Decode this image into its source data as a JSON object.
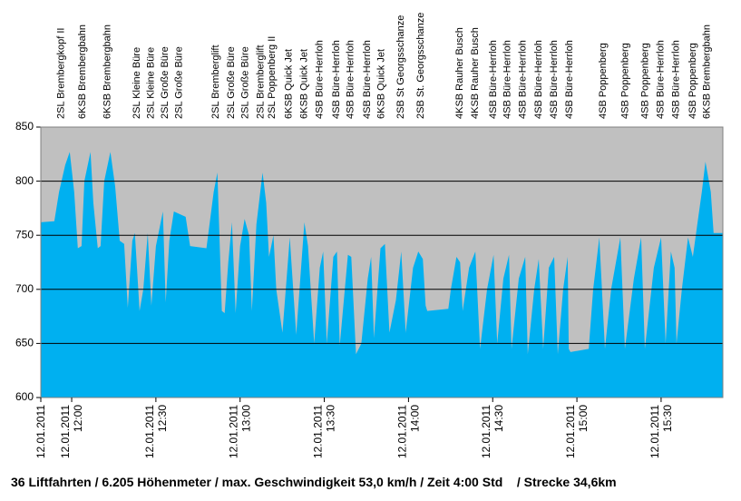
{
  "chart_data": {
    "type": "area",
    "title": "36 Liftfahrten / 6.205 Höhenmeter / max. Geschwindigkeit 53,0 km/h / Zeit 4:00 Std    / Strecke 34,6km",
    "color": "#00b0f0",
    "background": "#c0c0c0",
    "grid": true,
    "xlim": [
      709,
      952
    ],
    "ylim": [
      600,
      850
    ],
    "yticks": [
      600,
      650,
      700,
      750,
      800,
      850
    ],
    "xticks": [
      {
        "value": 709,
        "label": "12.01.2011"
      },
      {
        "value": 720,
        "label": "12.01.2011 12:00"
      },
      {
        "value": 750,
        "label": "12.01.2011 12:30"
      },
      {
        "value": 780,
        "label": "12.01.2011 13:00"
      },
      {
        "value": 810,
        "label": "12.01.2011 13:30"
      },
      {
        "value": 840,
        "label": "12.01.2011 14:00"
      },
      {
        "value": 870,
        "label": "12.01.2011 14:30"
      },
      {
        "value": 900,
        "label": "12.01.2011 15:00"
      },
      {
        "value": 930,
        "label": "12.01.2011 15:30"
      }
    ],
    "x": [
      709,
      713.8,
      715.5,
      717.7,
      719.3,
      720.9,
      722.2,
      723.5,
      724.5,
      726.7,
      727.7,
      729.3,
      730.3,
      731.6,
      733.8,
      735.5,
      737.1,
      738.7,
      740.0,
      741.6,
      742.5,
      744.2,
      745.5,
      747.1,
      748.4,
      750.0,
      752.5,
      753.5,
      754.8,
      756.4,
      760.6,
      762.2,
      768.0,
      770.6,
      771.9,
      773.5,
      774.5,
      775.8,
      777.1,
      778.4,
      780.0,
      781.6,
      783.2,
      784.2,
      785.8,
      788.0,
      789.3,
      790.3,
      791.9,
      792.9,
      795.1,
      797.7,
      800.0,
      802.9,
      804.2,
      806.4,
      808.4,
      809.6,
      810.9,
      813.2,
      814.5,
      815.5,
      818.4,
      819.6,
      821.3,
      823.2,
      825.5,
      826.7,
      827.7,
      830.0,
      831.6,
      833.2,
      835.5,
      837.4,
      839.0,
      841.6,
      843.5,
      845.1,
      846.1,
      846.7,
      854.2,
      855.1,
      857.1,
      858.4,
      859.3,
      861.6,
      863.8,
      865.5,
      868.0,
      870.3,
      871.6,
      873.8,
      875.8,
      876.7,
      879.3,
      881.6,
      882.5,
      884.8,
      886.4,
      888.0,
      890.0,
      891.9,
      893.2,
      895.1,
      896.7,
      897.1,
      897.7,
      904.2,
      905.8,
      908.0,
      910.0,
      912.2,
      915.5,
      917.1,
      920.3,
      922.9,
      924.2,
      927.4,
      930.0,
      931.6,
      933.5,
      934.8,
      935.5,
      937.4,
      939.6,
      941.3,
      942.9,
      944.5,
      945.8,
      947.7,
      948.7,
      952
    ],
    "values": [
      762,
      763,
      790,
      815,
      827,
      790,
      738,
      740,
      800,
      827,
      780,
      738,
      740,
      800,
      827,
      795,
      745,
      742,
      683,
      745,
      752,
      680,
      700,
      752,
      685,
      740,
      772,
      688,
      745,
      772,
      767,
      740,
      738,
      790,
      808,
      680,
      678,
      725,
      762,
      678,
      740,
      765,
      750,
      680,
      760,
      808,
      780,
      730,
      750,
      700,
      660,
      748,
      658,
      762,
      740,
      650,
      720,
      735,
      650,
      730,
      735,
      648,
      732,
      730,
      640,
      650,
      710,
      730,
      655,
      738,
      742,
      660,
      690,
      735,
      660,
      720,
      735,
      728,
      685,
      680,
      682,
      700,
      730,
      725,
      680,
      720,
      735,
      645,
      700,
      732,
      650,
      710,
      732,
      645,
      710,
      730,
      640,
      700,
      728,
      645,
      720,
      730,
      640,
      700,
      730,
      645,
      642,
      645,
      700,
      748,
      645,
      700,
      748,
      645,
      710,
      748,
      645,
      720,
      748,
      650,
      735,
      720,
      650,
      700,
      748,
      730,
      760,
      790,
      818,
      790,
      752,
      752
    ],
    "annotations": [
      {
        "x": 716,
        "text": "2SL Brembergkopf II"
      },
      {
        "x": 723.5,
        "text": "6KSB Brembergbahn"
      },
      {
        "x": 732.5,
        "text": "6KSB Brembergbahn"
      },
      {
        "x": 743,
        "text": "2SL Kleine Büre"
      },
      {
        "x": 748,
        "text": "2SL Kleine Büre"
      },
      {
        "x": 753,
        "text": "2SL Große Büre"
      },
      {
        "x": 758,
        "text": "2SL Große Büre"
      },
      {
        "x": 771,
        "text": "2SL Bremberglift"
      },
      {
        "x": 776.5,
        "text": "2SL Große Büre"
      },
      {
        "x": 781.5,
        "text": "2SL Große Büre"
      },
      {
        "x": 787,
        "text": "2SL Bremberglift"
      },
      {
        "x": 791,
        "text": "2SL Poppenberg II"
      },
      {
        "x": 797,
        "text": "6KSB Quick Jet"
      },
      {
        "x": 802.5,
        "text": "6KSB Quick Jet"
      },
      {
        "x": 808,
        "text": "4SB Büre-Herrloh"
      },
      {
        "x": 814,
        "text": "4SB Büre-Herrloh"
      },
      {
        "x": 819,
        "text": "4SB Büre-Herrloh"
      },
      {
        "x": 825,
        "text": "4SB Büre-Herrloh"
      },
      {
        "x": 830,
        "text": "6KSB Quick Jet"
      },
      {
        "x": 837,
        "text": "2SB St Georgsschanze"
      },
      {
        "x": 844,
        "text": "2SB St. Georgsschanze"
      },
      {
        "x": 858,
        "text": "4KSB Rauher Busch"
      },
      {
        "x": 863.5,
        "text": "4KSB Rauher Busch"
      },
      {
        "x": 870,
        "text": "4SB Büre-Herrloh"
      },
      {
        "x": 875,
        "text": "4SB Büre-Herrloh"
      },
      {
        "x": 880.5,
        "text": "4SB Büre-Herrloh"
      },
      {
        "x": 886,
        "text": "4SB Büre-Herrloh"
      },
      {
        "x": 891.5,
        "text": "4SB Büre-Herrloh"
      },
      {
        "x": 897,
        "text": "4SB Büre-Herrloh"
      },
      {
        "x": 909,
        "text": "4SB Poppenberg"
      },
      {
        "x": 917,
        "text": "4SB Poppenberg"
      },
      {
        "x": 924,
        "text": "4SB Poppenberg"
      },
      {
        "x": 929.5,
        "text": "4SB Büre-Herrloh"
      },
      {
        "x": 935,
        "text": "4SB Büre-Herrloh"
      },
      {
        "x": 941,
        "text": "4SB Poppenberg"
      },
      {
        "x": 946,
        "text": "6KSB Brembergbahn"
      }
    ]
  }
}
